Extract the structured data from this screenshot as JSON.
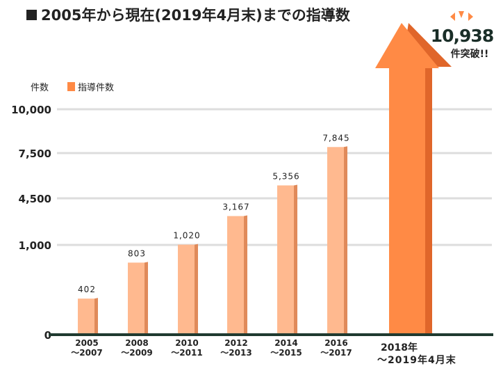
{
  "title": "2005年から現在(2019年4月末)までの指導数",
  "chart_data": {
    "type": "bar",
    "title": "2005年から現在(2019年4月末)までの指導数",
    "ylabel": "件数",
    "legend": {
      "label": "指導件数",
      "placement": "top-left"
    },
    "yticks": [
      0,
      1000,
      4500,
      7500,
      10000
    ],
    "ytick_labels": [
      "0",
      "1,000",
      "4,500",
      "7,500",
      "10,000"
    ],
    "y_scale": "non-linear (illustrative)",
    "grid": true,
    "categories": [
      [
        "2005",
        "～2007"
      ],
      [
        "2008",
        "～2009"
      ],
      [
        "2010",
        "～2011"
      ],
      [
        "2012",
        "～2013"
      ],
      [
        "2014",
        "～2015"
      ],
      [
        "2016",
        "～2017"
      ],
      [
        "2018年",
        "～2019年4月末"
      ]
    ],
    "values": [
      402,
      803,
      1020,
      3167,
      5356,
      7845,
      10938
    ],
    "value_labels": [
      "402",
      "803",
      "1,020",
      "3,167",
      "5,356",
      "7,845",
      "10,938"
    ],
    "highlight": {
      "value_label": "10,938",
      "caption": "件突破!!"
    },
    "colors": {
      "bar": "#ffb98f",
      "bar_side": "#e08a5a",
      "arrow": "#ff8a45",
      "arrow_side": "#e0662a",
      "axis": "#1f3a30",
      "grid": "#dddddd"
    }
  }
}
